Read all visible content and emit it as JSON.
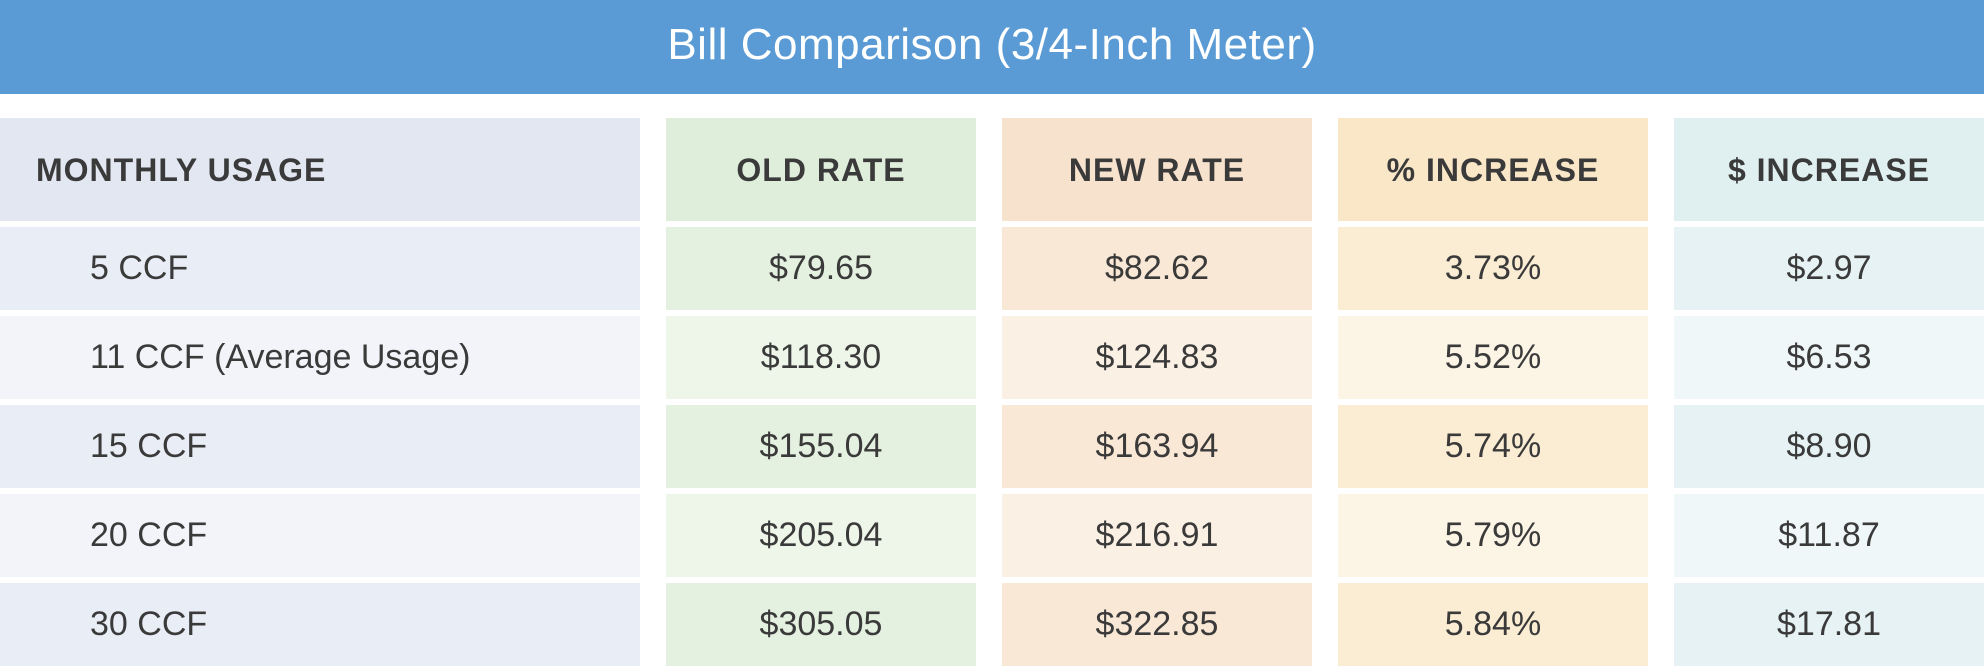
{
  "title": "Bill Comparison (3/4-Inch Meter)",
  "colors": {
    "title_bg": "#5a9bd5",
    "col0_header_bg": "#e2e7f2",
    "col0_odd_bg": "#e9edf5",
    "col0_even_bg": "#f2f4fa",
    "col1_header_bg": "#dfeedb",
    "col1_odd_bg": "#e5f1e0",
    "col1_even_bg": "#eef6ea",
    "col2_header_bg": "#f7e2cd",
    "col2_odd_bg": "#f9e8d6",
    "col2_even_bg": "#fbf0e4",
    "col3_header_bg": "#fae7c7",
    "col3_odd_bg": "#fbedd3",
    "col3_even_bg": "#fcf4e4",
    "col4_header_bg": "#e0eff0",
    "col4_odd_bg": "#e6f2f3",
    "col4_even_bg": "#f0f7f8",
    "text": "#3a3a3a"
  },
  "table": {
    "columns": [
      "MONTHLY USAGE",
      "OLD RATE",
      "NEW RATE",
      "% INCREASE",
      "$ INCREASE"
    ],
    "rows": [
      {
        "usage": "5 CCF",
        "old": "$79.65",
        "new": "$82.62",
        "pct": "3.73%",
        "dollar": "$2.97"
      },
      {
        "usage": "11 CCF (Average Usage)",
        "old": "$118.30",
        "new": "$124.83",
        "pct": "5.52%",
        "dollar": "$6.53"
      },
      {
        "usage": "15 CCF",
        "old": "$155.04",
        "new": "$163.94",
        "pct": "5.74%",
        "dollar": "$8.90"
      },
      {
        "usage": "20 CCF",
        "old": "$205.04",
        "new": "$216.91",
        "pct": "5.79%",
        "dollar": "$11.87"
      },
      {
        "usage": "30 CCF",
        "old": "$305.05",
        "new": "$322.85",
        "pct": "5.84%",
        "dollar": "$17.81"
      }
    ]
  }
}
